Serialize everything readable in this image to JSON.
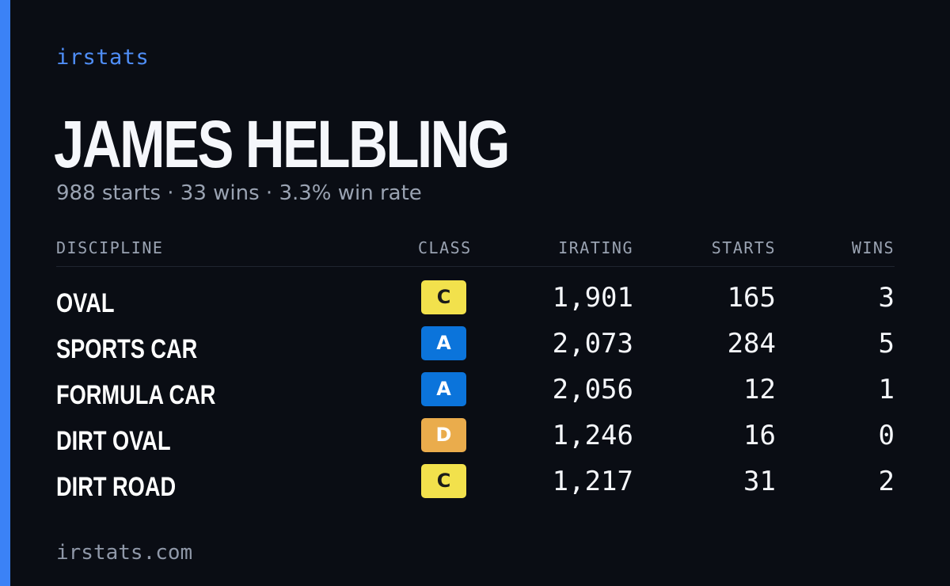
{
  "brand": "irstats",
  "player": {
    "name": "JAMES HELBLING",
    "summary": "988 starts · 33 wins · 3.3% win rate"
  },
  "table": {
    "headers": {
      "discipline": "DISCIPLINE",
      "class": "CLASS",
      "irating": "IRATING",
      "starts": "STARTS",
      "wins": "WINS"
    },
    "rows": [
      {
        "discipline": "OVAL",
        "class": "C",
        "class_color": "#f2e14c",
        "class_text_color": "#1a1a1a",
        "irating": "1,901",
        "starts": "165",
        "wins": "3"
      },
      {
        "discipline": "SPORTS CAR",
        "class": "A",
        "class_color": "#0b74db",
        "class_text_color": "#ffffff",
        "irating": "2,073",
        "starts": "284",
        "wins": "5"
      },
      {
        "discipline": "FORMULA CAR",
        "class": "A",
        "class_color": "#0b74db",
        "class_text_color": "#ffffff",
        "irating": "2,056",
        "starts": "12",
        "wins": "1"
      },
      {
        "discipline": "DIRT OVAL",
        "class": "D",
        "class_color": "#eaac4c",
        "class_text_color": "#ffffff",
        "irating": "1,246",
        "starts": "16",
        "wins": "0"
      },
      {
        "discipline": "DIRT ROAD",
        "class": "C",
        "class_color": "#f2e14c",
        "class_text_color": "#1a1a1a",
        "irating": "1,217",
        "starts": "31",
        "wins": "2"
      }
    ]
  },
  "footer": "irstats.com",
  "colors": {
    "accent": "#3b82f6",
    "background": "#0a0d14"
  }
}
